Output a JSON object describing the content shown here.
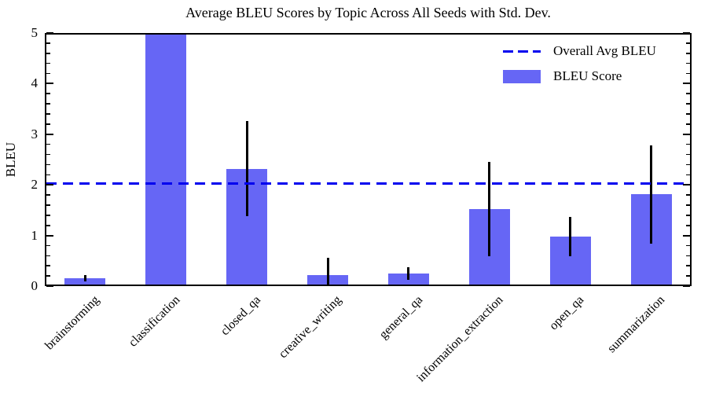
{
  "figure": {
    "title": "Average BLEU Scores by Topic Across All Seeds with Std. Dev."
  },
  "legend": {
    "items": [
      {
        "label": "Overall Avg BLEU",
        "marker": "dashed-line"
      },
      {
        "label": "BLEU Score",
        "marker": "filled-patch"
      }
    ],
    "position": "upper-right",
    "frame": false
  },
  "chart_data": {
    "type": "bar",
    "title": "Average BLEU Scores by Topic Across All Seeds with Std. Dev.",
    "xlabel": "",
    "ylabel": "BLEU",
    "ylim": [
      0,
      5
    ],
    "yticks": [
      0,
      1,
      2,
      3,
      4,
      5
    ],
    "minor_tick_step": 0.2,
    "tick_direction": "in",
    "grid": false,
    "categories": [
      "brainstorming",
      "classification",
      "closed_qa",
      "creative_writing",
      "general_qa",
      "information_extraction",
      "open_qa",
      "summarization"
    ],
    "series": [
      {
        "name": "BLEU Score",
        "values": [
          0.15,
          5.0,
          2.32,
          0.22,
          0.25,
          1.52,
          0.98,
          1.81
        ],
        "std_dev": [
          0.06,
          null,
          0.94,
          0.34,
          0.13,
          0.93,
          0.39,
          0.97
        ]
      }
    ],
    "clipped_above_ymax": [
      "classification"
    ],
    "overall_avg_line": {
      "label": "Overall Avg BLEU",
      "value": 2.03,
      "style": "dashed"
    },
    "colors": {
      "bar": "#6666f5",
      "avg_line": "#0000ee",
      "error_bar": "#000000",
      "axis": "#000000"
    }
  }
}
